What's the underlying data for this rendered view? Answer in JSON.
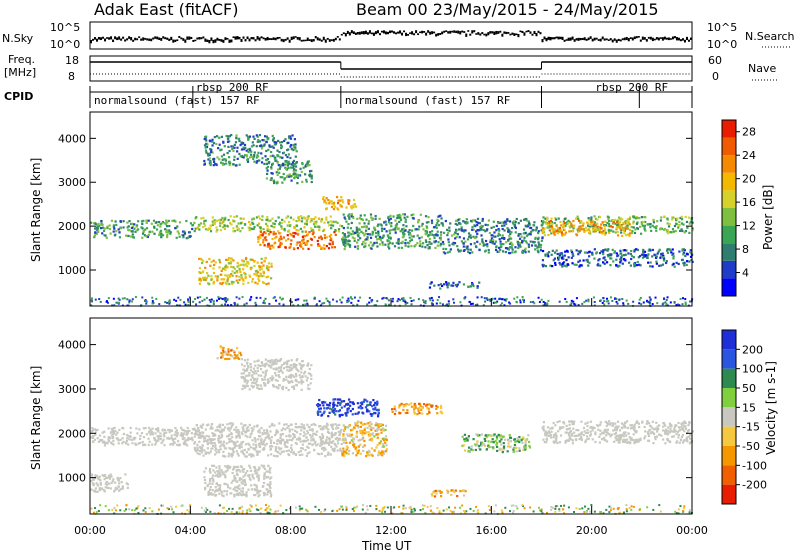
{
  "header": {
    "title": "Adak East (fitACF)",
    "beam_and_date": "Beam 00 23/May/2015 - 24/May/2015"
  },
  "panels": {
    "nsky": {
      "left_label": "N.Sky",
      "left_ticks": [
        "10^5",
        "10^0"
      ],
      "right_label": "N.Search",
      "right_ticks": [
        "10^5",
        "10^0"
      ]
    },
    "freq": {
      "left_label_top": "Freq.",
      "left_label_bottom": "[MHz]",
      "left_ticks": [
        "18",
        "8"
      ],
      "right_label": "Nave",
      "right_ticks": [
        "60",
        "0"
      ]
    },
    "cpid": {
      "label": "CPID",
      "segments": [
        {
          "label": "normalsound (fast) 157 RF",
          "start": 0,
          "end": 4.1
        },
        {
          "label": "rbsp 200 RF",
          "start": 4.1,
          "end": 10.0
        },
        {
          "label": "normalsound (fast) 157 RF",
          "start": 10.0,
          "end": 18.0
        },
        {
          "label": "rbsp 200 RF",
          "start": 18.0,
          "end": 21.9
        },
        {
          "label": "",
          "start": 21.9,
          "end": 24.0
        }
      ]
    }
  },
  "chart_data": [
    {
      "type": "heatmap",
      "name": "power",
      "ylabel": "Slant Range [km]",
      "xlim": [
        0,
        24
      ],
      "ylim": [
        180,
        4600
      ],
      "yticks": [
        1000,
        2000,
        3000,
        4000
      ],
      "colorbar": {
        "label": "Power [dB]",
        "ticks": [
          "28",
          "24",
          "20",
          "16",
          "12",
          "8",
          "4"
        ],
        "range": [
          0,
          30
        ],
        "colors": [
          "#0000ff",
          "#1e3cc8",
          "#2e7d6e",
          "#3aa655",
          "#7fbf3f",
          "#d6d12a",
          "#f5b800",
          "#f58a00",
          "#f05a00",
          "#e81e00"
        ]
      },
      "regions": [
        {
          "x0": 0.0,
          "x1": 4.1,
          "y0": 1750,
          "y1": 2150,
          "value": 10
        },
        {
          "x0": 4.1,
          "x1": 10.0,
          "y0": 1900,
          "y1": 2250,
          "value": 14
        },
        {
          "x0": 6.6,
          "x1": 9.8,
          "y0": 1500,
          "y1": 1900,
          "value": 24
        },
        {
          "x0": 4.3,
          "x1": 7.2,
          "y0": 700,
          "y1": 1300,
          "value": 18
        },
        {
          "x0": 4.5,
          "x1": 8.2,
          "y0": 3400,
          "y1": 4100,
          "value": 8
        },
        {
          "x0": 7.0,
          "x1": 8.8,
          "y0": 3000,
          "y1": 3500,
          "value": 10
        },
        {
          "x0": 10.0,
          "x1": 14.0,
          "y0": 1500,
          "y1": 2300,
          "value": 10
        },
        {
          "x0": 9.2,
          "x1": 10.6,
          "y0": 2400,
          "y1": 2700,
          "value": 20
        },
        {
          "x0": 14.0,
          "x1": 18.0,
          "y0": 1400,
          "y1": 2200,
          "value": 8
        },
        {
          "x0": 13.5,
          "x1": 15.5,
          "y0": 600,
          "y1": 750,
          "value": 6
        },
        {
          "x0": 18.0,
          "x1": 24.0,
          "y0": 1850,
          "y1": 2250,
          "value": 12
        },
        {
          "x0": 18.0,
          "x1": 21.5,
          "y0": 1800,
          "y1": 2150,
          "value": 20
        },
        {
          "x0": 18.0,
          "x1": 24.0,
          "y0": 1100,
          "y1": 1500,
          "value": 6
        }
      ]
    },
    {
      "type": "heatmap",
      "name": "velocity",
      "ylabel": "Slant Range [km]",
      "xlabel": "Time UT",
      "xlim": [
        0,
        24
      ],
      "ylim": [
        180,
        4600
      ],
      "yticks": [
        1000,
        2000,
        3000,
        4000
      ],
      "xticks": [
        "00:00",
        "04:00",
        "08:00",
        "12:00",
        "16:00",
        "20:00",
        "00:00"
      ],
      "colorbar": {
        "label": "Velocity [m s-1]",
        "ticks": [
          "200",
          "100",
          "50",
          "15",
          "-15",
          "-50",
          "-100",
          "-200"
        ],
        "colors": [
          "#1e2fd8",
          "#2a55e0",
          "#2e8a50",
          "#7fcf3f",
          "#c8c8c0",
          "#f6c840",
          "#f59800",
          "#f06000",
          "#e81e00"
        ]
      },
      "regions": [
        {
          "x0": 0.0,
          "x1": 4.1,
          "y0": 1750,
          "y1": 2150,
          "value": "ground"
        },
        {
          "x0": 4.1,
          "x1": 10.0,
          "y0": 1500,
          "y1": 2250,
          "value": "ground"
        },
        {
          "x0": 0.0,
          "x1": 1.5,
          "y0": 700,
          "y1": 1100,
          "value": "ground"
        },
        {
          "x0": 4.5,
          "x1": 7.2,
          "y0": 600,
          "y1": 1300,
          "value": "ground"
        },
        {
          "x0": 5.0,
          "x1": 6.0,
          "y0": 3700,
          "y1": 4000,
          "value": -60
        },
        {
          "x0": 6.0,
          "x1": 8.8,
          "y0": 3000,
          "y1": 3700,
          "value": "ground"
        },
        {
          "x0": 9.0,
          "x1": 11.5,
          "y0": 2400,
          "y1": 2800,
          "value": 150
        },
        {
          "x0": 10.0,
          "x1": 11.8,
          "y0": 1500,
          "y1": 2300,
          "value": -40
        },
        {
          "x0": 12.0,
          "x1": 14.0,
          "y0": 2450,
          "y1": 2700,
          "value": -70
        },
        {
          "x0": 14.8,
          "x1": 17.5,
          "y0": 1600,
          "y1": 2000,
          "value": 30
        },
        {
          "x0": 18.0,
          "x1": 24.0,
          "y0": 1800,
          "y1": 2300,
          "value": "ground"
        },
        {
          "x0": 13.5,
          "x1": 15.0,
          "y0": 600,
          "y1": 750,
          "value": -60
        }
      ]
    }
  ]
}
